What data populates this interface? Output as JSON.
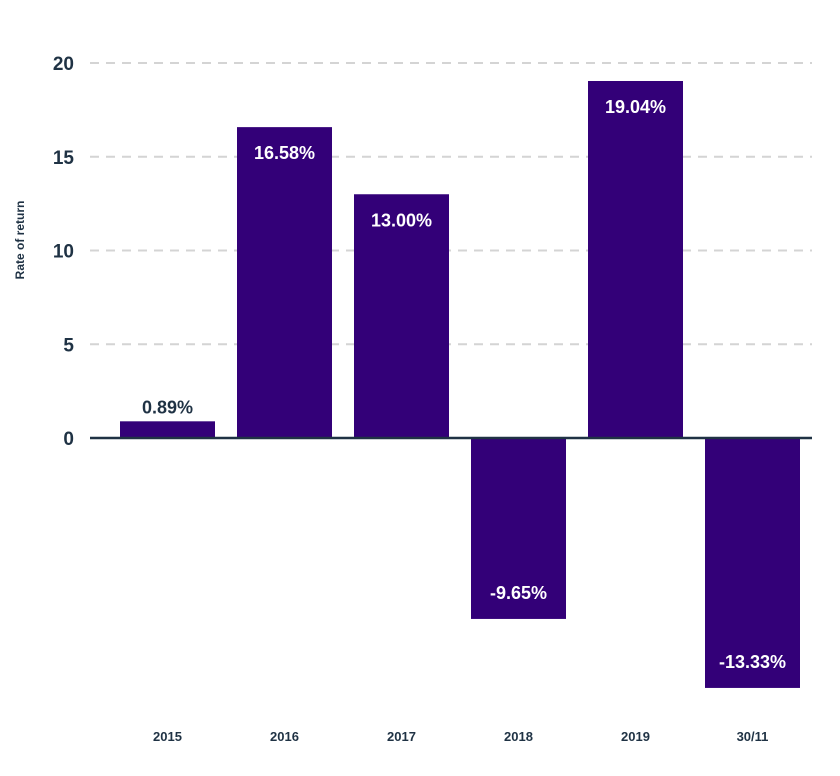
{
  "chart_data": {
    "type": "bar",
    "categories": [
      "2015",
      "2016",
      "2017",
      "2018",
      "2019",
      "30/11"
    ],
    "values": [
      0.89,
      16.58,
      13.0,
      -9.65,
      19.04,
      -13.33
    ],
    "data_labels": [
      "0.89%",
      "16.58%",
      "13.00%",
      "-9.65%",
      "19.04%",
      "-13.33%"
    ],
    "ylabel": "Rate of return",
    "yticks": [
      0,
      5,
      10,
      15,
      20
    ],
    "ylim": [
      -14,
      20
    ],
    "grid": true,
    "bar_color": "#330078",
    "label_color_inside": "#ffffff",
    "label_color_outside": "#1f3244"
  }
}
